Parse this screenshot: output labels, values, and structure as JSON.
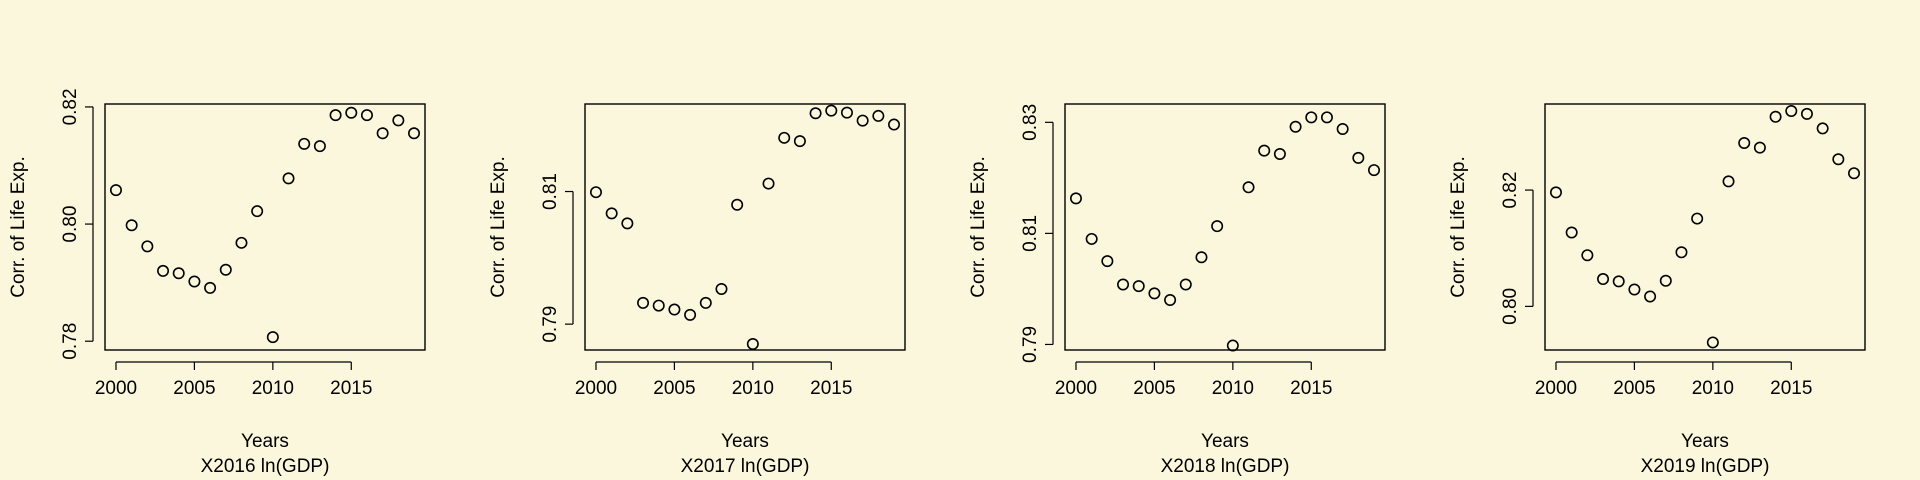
{
  "chart_data": [
    {
      "type": "scatter",
      "xlabel": "Years",
      "subtitle": "X2016 ln(GDP)",
      "ylabel": "Corr. of Life Exp.",
      "xlim": [
        1999.3,
        2019.7
      ],
      "ylim": [
        0.7785,
        0.8205
      ],
      "x_ticks": [
        "2000",
        "2005",
        "2010",
        "2015"
      ],
      "y_ticks": [
        "0.78",
        "0.80",
        "0.82"
      ],
      "x_tick_values": [
        2000,
        2005,
        2010,
        2015
      ],
      "y_tick_values": [
        0.78,
        0.8,
        0.82
      ],
      "x": [
        2000,
        2001,
        2002,
        2003,
        2004,
        2005,
        2006,
        2007,
        2008,
        2009,
        2010,
        2011,
        2012,
        2013,
        2014,
        2015,
        2016,
        2017,
        2018,
        2019
      ],
      "values": [
        0.8058,
        0.7998,
        0.7962,
        0.792,
        0.7916,
        0.7902,
        0.7891,
        0.7922,
        0.7968,
        0.8022,
        0.7807,
        0.8078,
        0.8137,
        0.8133,
        0.8186,
        0.819,
        0.8186,
        0.8155,
        0.8177,
        0.8155
      ],
      "grid": false
    },
    {
      "type": "scatter",
      "xlabel": "Years",
      "subtitle": "X2017 ln(GDP)",
      "ylabel": "Corr. of Life Exp.",
      "xlim": [
        1999.3,
        2019.7
      ],
      "ylim": [
        0.7861,
        0.8232
      ],
      "x_ticks": [
        "2000",
        "2005",
        "2010",
        "2015"
      ],
      "y_ticks": [
        "0.79",
        "0.81"
      ],
      "x_tick_values": [
        2000,
        2005,
        2010,
        2015
      ],
      "y_tick_values": [
        0.79,
        0.81
      ],
      "x": [
        2000,
        2001,
        2002,
        2003,
        2004,
        2005,
        2006,
        2007,
        2008,
        2009,
        2010,
        2011,
        2012,
        2013,
        2014,
        2015,
        2016,
        2017,
        2018,
        2019
      ],
      "values": [
        0.8099,
        0.8067,
        0.8052,
        0.7932,
        0.7928,
        0.7922,
        0.7914,
        0.7932,
        0.7953,
        0.808,
        0.787,
        0.8112,
        0.8181,
        0.8176,
        0.8218,
        0.8222,
        0.8219,
        0.8207,
        0.8214,
        0.8201
      ],
      "grid": false
    },
    {
      "type": "scatter",
      "xlabel": "Years",
      "subtitle": "X2018 ln(GDP)",
      "ylabel": "Corr. of Life Exp.",
      "xlim": [
        1999.3,
        2019.7
      ],
      "ylim": [
        0.789,
        0.8333
      ],
      "x_ticks": [
        "2000",
        "2005",
        "2010",
        "2015"
      ],
      "y_ticks": [
        "0.79",
        "0.81",
        "0.83"
      ],
      "x_tick_values": [
        2000,
        2005,
        2010,
        2015
      ],
      "y_tick_values": [
        0.79,
        0.81,
        0.83
      ],
      "x": [
        2000,
        2001,
        2002,
        2003,
        2004,
        2005,
        2006,
        2007,
        2008,
        2009,
        2010,
        2011,
        2012,
        2013,
        2014,
        2015,
        2016,
        2017,
        2018,
        2019
      ],
      "values": [
        0.8163,
        0.809,
        0.805,
        0.8008,
        0.8005,
        0.7992,
        0.798,
        0.8008,
        0.8057,
        0.8113,
        0.7898,
        0.8183,
        0.8249,
        0.8243,
        0.8292,
        0.8309,
        0.8309,
        0.8288,
        0.8236,
        0.8214
      ],
      "grid": false
    },
    {
      "type": "scatter",
      "xlabel": "Years",
      "subtitle": "X2019 ln(GDP)",
      "ylabel": "Corr. of Life Exp.",
      "xlim": [
        1999.3,
        2019.7
      ],
      "ylim": [
        0.7925,
        0.8348
      ],
      "x_ticks": [
        "2000",
        "2005",
        "2010",
        "2015"
      ],
      "y_ticks": [
        "0.80",
        "0.82"
      ],
      "x_tick_values": [
        2000,
        2005,
        2010,
        2015
      ],
      "y_tick_values": [
        0.8,
        0.82
      ],
      "x": [
        2000,
        2001,
        2002,
        2003,
        2004,
        2005,
        2006,
        2007,
        2008,
        2009,
        2010,
        2011,
        2012,
        2013,
        2014,
        2015,
        2016,
        2017,
        2018,
        2019
      ],
      "values": [
        0.8196,
        0.8127,
        0.8088,
        0.8047,
        0.8043,
        0.8029,
        0.8017,
        0.8044,
        0.8093,
        0.8151,
        0.7938,
        0.8215,
        0.8281,
        0.8273,
        0.8326,
        0.8336,
        0.8331,
        0.8306,
        0.8253,
        0.8229
      ],
      "grid": false
    }
  ]
}
